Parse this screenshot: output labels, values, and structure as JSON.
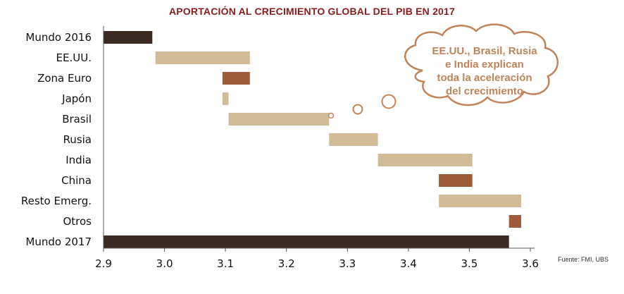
{
  "chart_data": {
    "type": "bar",
    "title": "APORTACIÓN AL CRECIMIENTO GLOBAL DEL PIB EN 2017",
    "orientation": "horizontal-waterfall",
    "categories": [
      "Mundo 2016",
      "EE.UU.",
      "Zona Euro",
      "Japón",
      "Brasil",
      "Rusia",
      "India",
      "China",
      "Resto Emerg.",
      "Otros",
      "Mundo 2017"
    ],
    "bars": [
      {
        "category": "Mundo 2016",
        "start": 2.9,
        "end": 2.98,
        "color": "#3b2a22"
      },
      {
        "category": "EE.UU.",
        "start": 2.985,
        "end": 3.14,
        "color": "#d2bc98"
      },
      {
        "category": "Zona Euro",
        "start": 3.095,
        "end": 3.14,
        "color": "#9e5c3a"
      },
      {
        "category": "Japón",
        "start": 3.095,
        "end": 3.105,
        "color": "#d2bc98"
      },
      {
        "category": "Brasil",
        "start": 3.105,
        "end": 3.27,
        "color": "#d2bc98"
      },
      {
        "category": "Rusia",
        "start": 3.27,
        "end": 3.35,
        "color": "#d2bc98"
      },
      {
        "category": "India",
        "start": 3.35,
        "end": 3.505,
        "color": "#d2bc98"
      },
      {
        "category": "China",
        "start": 3.45,
        "end": 3.505,
        "color": "#9e5c3a"
      },
      {
        "category": "Resto Emerg.",
        "start": 3.45,
        "end": 3.585,
        "color": "#d2bc98"
      },
      {
        "category": "Otros",
        "start": 3.565,
        "end": 3.585,
        "color": "#9e5c3a"
      },
      {
        "category": "Mundo 2017",
        "start": 2.9,
        "end": 3.565,
        "color": "#3b2a22"
      }
    ],
    "xlim": [
      2.9,
      3.6
    ],
    "xticks": [
      "2.9",
      "3.0",
      "3.1",
      "3.2",
      "3.3",
      "3.4",
      "3.5",
      "3.6"
    ],
    "grid": false,
    "annotation": "EE.UU., Brasil, Rusia e India explican toda la aceleración del crecimiento",
    "source": "Fuente: FMI, UBS"
  },
  "callout": {
    "lines": [
      "EE.UU., Brasil, Rusia",
      "e India explican",
      "toda la aceleración",
      "del crecimiento"
    ]
  },
  "colors": {
    "dark": "#3b2a22",
    "light": "#d2bc98",
    "medium": "#9e5c3a",
    "title": "#8b1c1c",
    "callout_text": "#c0845a",
    "callout_border": "#c0845a"
  }
}
